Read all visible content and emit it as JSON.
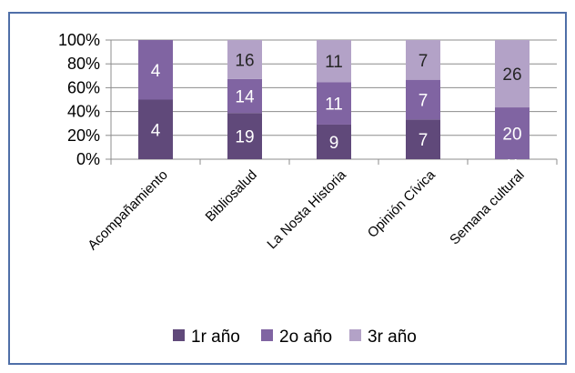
{
  "chart_data": {
    "type": "bar",
    "stacked": true,
    "percent_stacked": true,
    "categories": [
      "Acompañamiento",
      "Bibliosalud",
      "La Nosta Historia",
      "Opinión Cívica",
      "Semana cultural"
    ],
    "series": [
      {
        "name": "1r año",
        "values": [
          4,
          19,
          9,
          7,
          0
        ],
        "labels": [
          "4",
          "19",
          "9",
          "7",
          "0"
        ],
        "color": "#60497a"
      },
      {
        "name": "2o año",
        "values": [
          4,
          14,
          11,
          7,
          20
        ],
        "labels": [
          "4",
          "14",
          "11",
          "7",
          "20"
        ],
        "color": "#8064a2"
      },
      {
        "name": "3r año",
        "values": [
          0,
          16,
          11,
          7,
          26
        ],
        "labels": [
          "",
          "16",
          "11",
          "7",
          "26"
        ],
        "color": "#b3a2c7"
      }
    ],
    "yticks": [
      "0%",
      "20%",
      "40%",
      "60%",
      "80%",
      "100%"
    ],
    "ylim": [
      0,
      100
    ],
    "legend_position": "bottom",
    "grid": true
  }
}
